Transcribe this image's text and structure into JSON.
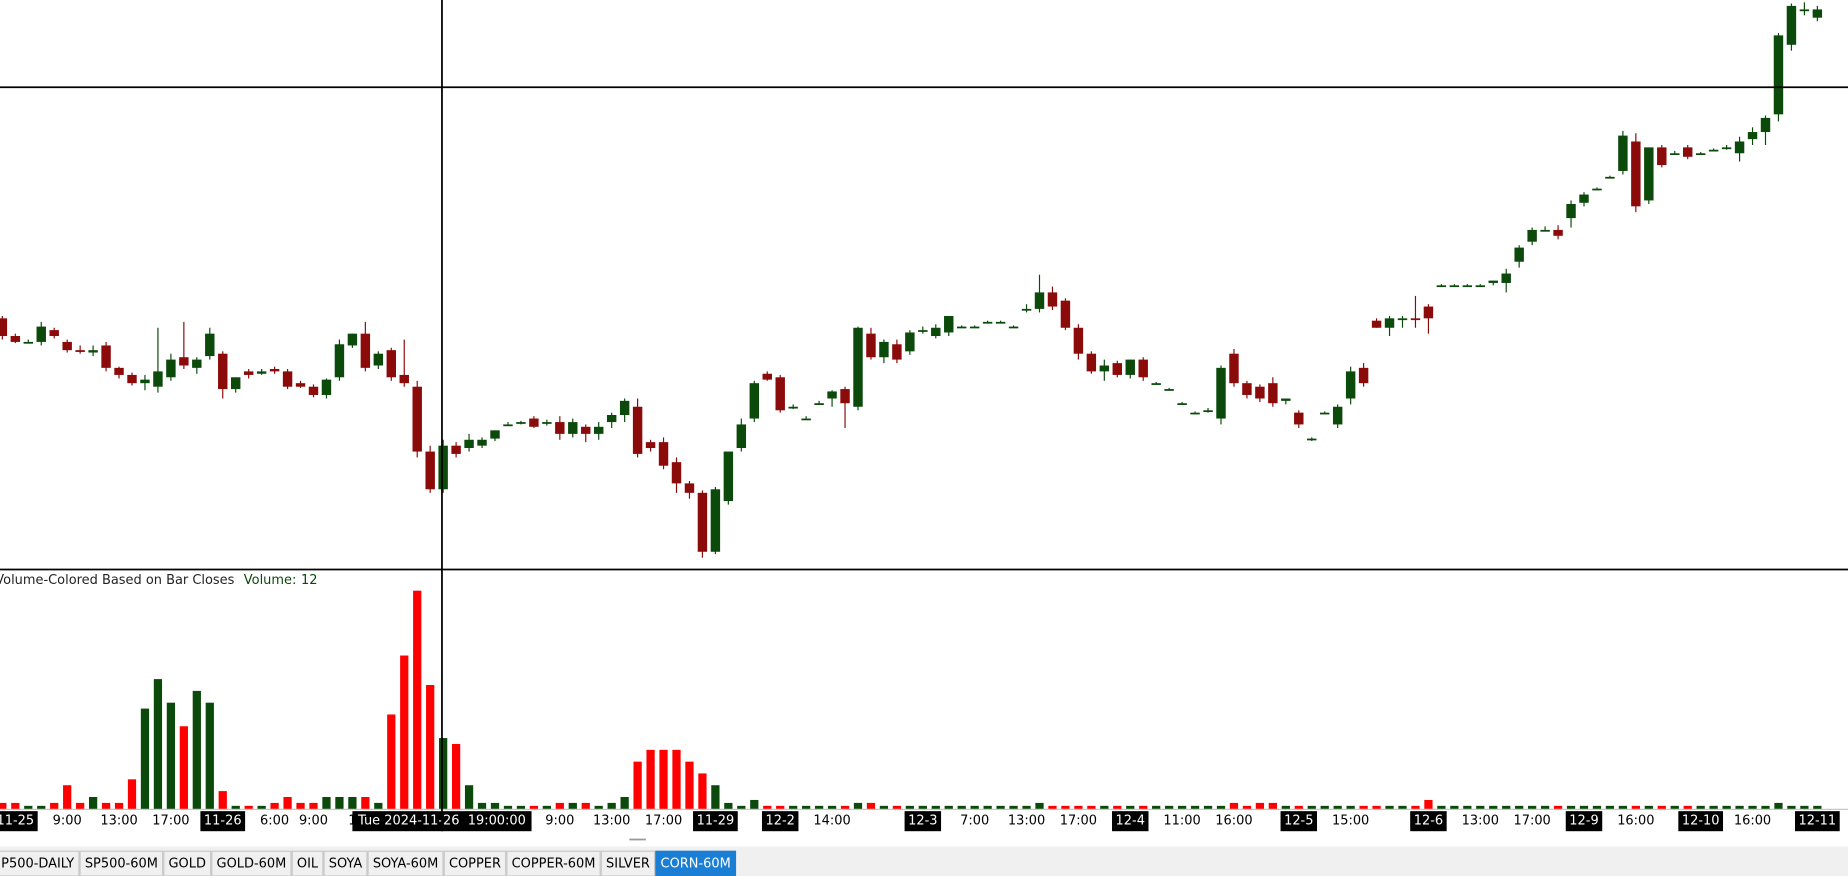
{
  "chart_data": [
    {
      "type": "candlestick",
      "categories": [
        null,
        "11-25",
        null,
        null,
        null,
        "9:00",
        null,
        null,
        null,
        "13:00",
        null,
        null,
        null,
        "17:00",
        null,
        null,
        null,
        "11-26",
        null,
        null,
        null,
        "6:00",
        null,
        null,
        "9:00",
        null,
        null,
        "1",
        null,
        null,
        null,
        null,
        null,
        null,
        null,
        null,
        null,
        null,
        null,
        null,
        null,
        null,
        null,
        "9:00",
        null,
        null,
        null,
        "13:00",
        null,
        null,
        null,
        "17:00",
        null,
        null,
        null,
        "11-29",
        null,
        null,
        null,
        null,
        "12-2",
        null,
        null,
        null,
        "14:00",
        null,
        null,
        null,
        null,
        null,
        null,
        "12-3",
        null,
        null,
        null,
        "7:00",
        null,
        null,
        null,
        "13:00",
        null,
        null,
        null,
        "17:00",
        null,
        null,
        null,
        "12-4",
        null,
        null,
        null,
        "11:00",
        null,
        null,
        null,
        "16:00",
        null,
        null,
        null,
        null,
        "12-5",
        null,
        null,
        null,
        "15:00",
        null,
        null,
        null,
        null,
        null,
        "12-6",
        null,
        null,
        null,
        "13:00",
        null,
        null,
        null,
        "17:00",
        null,
        null,
        null,
        "12-9",
        null,
        null,
        null,
        "16:00",
        null,
        null,
        null,
        null,
        "12-10",
        null,
        null,
        null,
        "16:00",
        null,
        null,
        null,
        null,
        "12-11"
      ],
      "open": [
        213,
        198,
        193,
        193,
        203,
        193,
        186,
        184,
        190,
        171,
        165,
        158,
        155,
        163,
        180,
        171,
        181,
        183,
        153,
        168,
        166,
        170,
        168,
        158,
        155,
        148,
        163,
        190,
        200,
        173,
        186,
        165,
        155,
        100,
        68,
        105,
        103,
        105,
        111,
        123,
        124,
        128,
        125,
        125,
        115,
        121,
        115,
        125,
        131,
        138,
        108,
        108,
        91,
        73,
        65,
        15,
        58,
        103,
        128,
        166,
        163,
        138,
        128,
        141,
        145,
        153,
        138,
        200,
        180,
        191,
        185,
        203,
        198,
        201,
        206,
        206,
        210,
        210,
        206,
        221,
        221,
        235,
        228,
        205,
        183,
        168,
        175,
        165,
        178,
        158,
        153,
        141,
        133,
        135,
        128,
        183,
        158,
        155,
        158,
        143,
        133,
        111,
        133,
        123,
        145,
        171,
        211,
        205,
        213,
        213,
        223,
        241,
        241,
        241,
        241,
        243,
        243,
        261,
        278,
        288,
        288,
        298,
        311,
        323,
        333,
        338,
        363,
        313,
        358,
        353,
        358,
        353,
        356,
        358,
        353,
        365,
        371,
        386,
        445,
        475,
        468
      ],
      "high": [
        215,
        200,
        195,
        210,
        205,
        195,
        190,
        190,
        193,
        172,
        167,
        165,
        205,
        183,
        210,
        180,
        205,
        185,
        163,
        170,
        170,
        172,
        170,
        160,
        157,
        162,
        195,
        200,
        210,
        185,
        188,
        195,
        160,
        105,
        110,
        108,
        115,
        112,
        118,
        125,
        126,
        130,
        127,
        130,
        128,
        123,
        125,
        133,
        145,
        145,
        110,
        112,
        95,
        75,
        67,
        70,
        100,
        128,
        160,
        168,
        165,
        140,
        130,
        143,
        152,
        155,
        206,
        205,
        195,
        195,
        203,
        206,
        208,
        215,
        207,
        207,
        211,
        211,
        207,
        225,
        250,
        240,
        230,
        208,
        185,
        178,
        177,
        178,
        180,
        159,
        154,
        142,
        134,
        137,
        173,
        187,
        160,
        157,
        163,
        145,
        135,
        112,
        134,
        140,
        172,
        175,
        213,
        215,
        215,
        232,
        225,
        242,
        242,
        242,
        242,
        245,
        255,
        275,
        290,
        291,
        292,
        313,
        320,
        324,
        334,
        372,
        370,
        358,
        360,
        355,
        360,
        354,
        357,
        360,
        367,
        375,
        385,
        455,
        480,
        481,
        478
      ],
      "low": [
        195,
        192,
        192,
        190,
        196,
        184,
        183,
        181,
        168,
        162,
        156,
        152,
        150,
        160,
        170,
        166,
        178,
        145,
        150,
        162,
        165,
        166,
        153,
        154,
        146,
        145,
        160,
        188,
        168,
        170,
        160,
        155,
        95,
        65,
        65,
        95,
        100,
        103,
        109,
        122,
        123,
        120,
        122,
        110,
        112,
        108,
        110,
        120,
        125,
        95,
        100,
        85,
        65,
        60,
        10,
        13,
        55,
        100,
        125,
        160,
        133,
        136,
        127,
        140,
        138,
        120,
        135,
        178,
        175,
        175,
        182,
        200,
        196,
        198,
        205,
        205,
        209,
        209,
        205,
        218,
        218,
        220,
        203,
        178,
        166,
        160,
        163,
        162,
        160,
        157,
        152,
        140,
        132,
        133,
        123,
        155,
        145,
        142,
        138,
        140,
        120,
        109,
        132,
        120,
        140,
        155,
        205,
        198,
        205,
        205,
        200,
        240,
        240,
        240,
        240,
        241,
        235,
        256,
        275,
        287,
        280,
        290,
        308,
        322,
        332,
        335,
        303,
        310,
        341,
        352,
        348,
        352,
        355,
        356,
        346,
        360,
        360,
        380,
        440,
        470,
        465
      ],
      "close": [
        198,
        193,
        193,
        206,
        198,
        186,
        185,
        186,
        171,
        165,
        158,
        161,
        168,
        178,
        173,
        178,
        200,
        153,
        163,
        165,
        168,
        168,
        155,
        155,
        148,
        161,
        191,
        200,
        171,
        183,
        163,
        158,
        100,
        68,
        105,
        98,
        110,
        110,
        118,
        123,
        125,
        121,
        125,
        115,
        125,
        115,
        121,
        131,
        143,
        98,
        103,
        88,
        73,
        65,
        15,
        68,
        100,
        123,
        158,
        161,
        135,
        138,
        128,
        141,
        151,
        141,
        205,
        180,
        193,
        178,
        201,
        203,
        205,
        215,
        206,
        206,
        210,
        210,
        206,
        221,
        235,
        223,
        205,
        183,
        168,
        173,
        165,
        178,
        163,
        158,
        153,
        141,
        133,
        135,
        171,
        158,
        148,
        145,
        141,
        145,
        123,
        111,
        133,
        138,
        168,
        158,
        205,
        213,
        213,
        212,
        213,
        241,
        241,
        241,
        241,
        245,
        251,
        273,
        288,
        288,
        283,
        310,
        318,
        323,
        333,
        368,
        308,
        358,
        343,
        353,
        350,
        353,
        356,
        358,
        363,
        371,
        383,
        453,
        478,
        475,
        475
      ],
      "ylim": [
        0,
        483
      ],
      "up_color": "#0b4a0b",
      "down_color": "#8b0a0a",
      "crosshair_label": "Tue 2024-11-26  19:00:00"
    },
    {
      "type": "bar",
      "title": "Volume-Colored Based on Bar Closes",
      "readout_label": "Volume:",
      "readout_value": 12,
      "values": [
        1,
        1,
        0.5,
        0.5,
        1,
        4,
        1,
        2,
        1,
        1,
        5,
        17,
        22,
        18,
        14,
        20,
        18,
        3,
        0.5,
        0.5,
        0.5,
        1,
        2,
        1,
        1,
        2,
        2,
        2,
        2,
        1,
        16,
        26,
        37,
        21,
        12,
        11,
        4,
        1,
        1,
        0.5,
        0.5,
        0.5,
        0.5,
        1,
        1,
        1,
        0.5,
        1,
        2,
        8,
        10,
        10,
        10,
        8,
        6,
        4,
        1,
        0.5,
        1.5,
        0.5,
        0.5,
        0.5,
        0.5,
        0.5,
        0.5,
        0.5,
        1,
        1,
        0.5,
        0.5,
        0.5,
        0.5,
        0.5,
        0.5,
        0.5,
        0.5,
        0.5,
        0.5,
        0.5,
        0.5,
        1,
        0.5,
        0.5,
        0.5,
        0.5,
        0.5,
        0.5,
        0.5,
        0.5,
        0.5,
        0.5,
        0.5,
        0.5,
        0.5,
        0.5,
        1,
        0.5,
        1,
        1,
        0.5,
        0.5,
        0.5,
        0.5,
        0.5,
        0.5,
        0.5,
        0.5,
        0.5,
        0.5,
        0.5,
        1.5,
        0.5,
        0.5,
        0.5,
        0.5,
        0.5,
        0.5,
        0.5,
        0.5,
        0.5,
        0.5,
        0.5,
        0.5,
        0.5,
        0.5,
        0.5,
        0.5,
        0.5,
        0.5,
        0.5,
        0.5,
        0.5,
        0.5,
        0.5,
        0.5,
        0.5,
        0.5,
        1,
        0.5,
        0.5,
        0.5
      ],
      "ylim": [
        0,
        39
      ],
      "up_color": "#0b4a0b",
      "down_color": "#ff0000"
    }
  ],
  "tabs": [
    "P500-DAILY",
    "SP500-60M",
    "GOLD",
    "GOLD-60M",
    "OIL",
    "SOYA",
    "SOYA-60M",
    "COPPER",
    "COPPER-60M",
    "SILVER",
    "CORN-60M"
  ],
  "active_tab": 10
}
